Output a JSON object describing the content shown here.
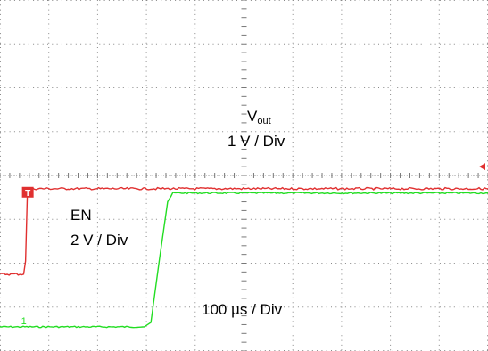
{
  "chart_data": {
    "type": "line",
    "x_unit": "µs",
    "x_range": [
      -53.4,
      966.6
    ],
    "grid": "10 x 8 divisions, dotted",
    "series": [
      {
        "name": "Vout",
        "scale_label": "1 V / Div",
        "color": "#22dd22",
        "y_range_div": [
          -0.55,
          7.45
        ],
        "points": [
          [
            -53.4,
            0.0
          ],
          [
            248,
            0.0
          ],
          [
            262,
            0.1
          ],
          [
            280,
            1.55
          ],
          [
            297,
            2.85
          ],
          [
            308,
            3.05
          ],
          [
            966.6,
            3.05
          ]
        ]
      },
      {
        "name": "EN",
        "scale_label": "2 V / Div",
        "color": "#e03030",
        "y_range_div": [
          -1.75,
          6.25
        ],
        "points": [
          [
            -53.4,
            0.0
          ],
          [
            -4,
            0.0
          ],
          [
            0,
            0.3
          ],
          [
            4,
            1.95
          ],
          [
            7,
            1.95
          ],
          [
            966.6,
            1.95
          ]
        ]
      }
    ],
    "annotations": {
      "vout_label": "V",
      "vout_sub": "out",
      "vout_scale": "1 V / Div",
      "en_label": "EN",
      "en_scale": "2 V / Div",
      "time_scale": "100 µs / Div",
      "trigger_marker": "T",
      "ground_marker": "1"
    }
  }
}
